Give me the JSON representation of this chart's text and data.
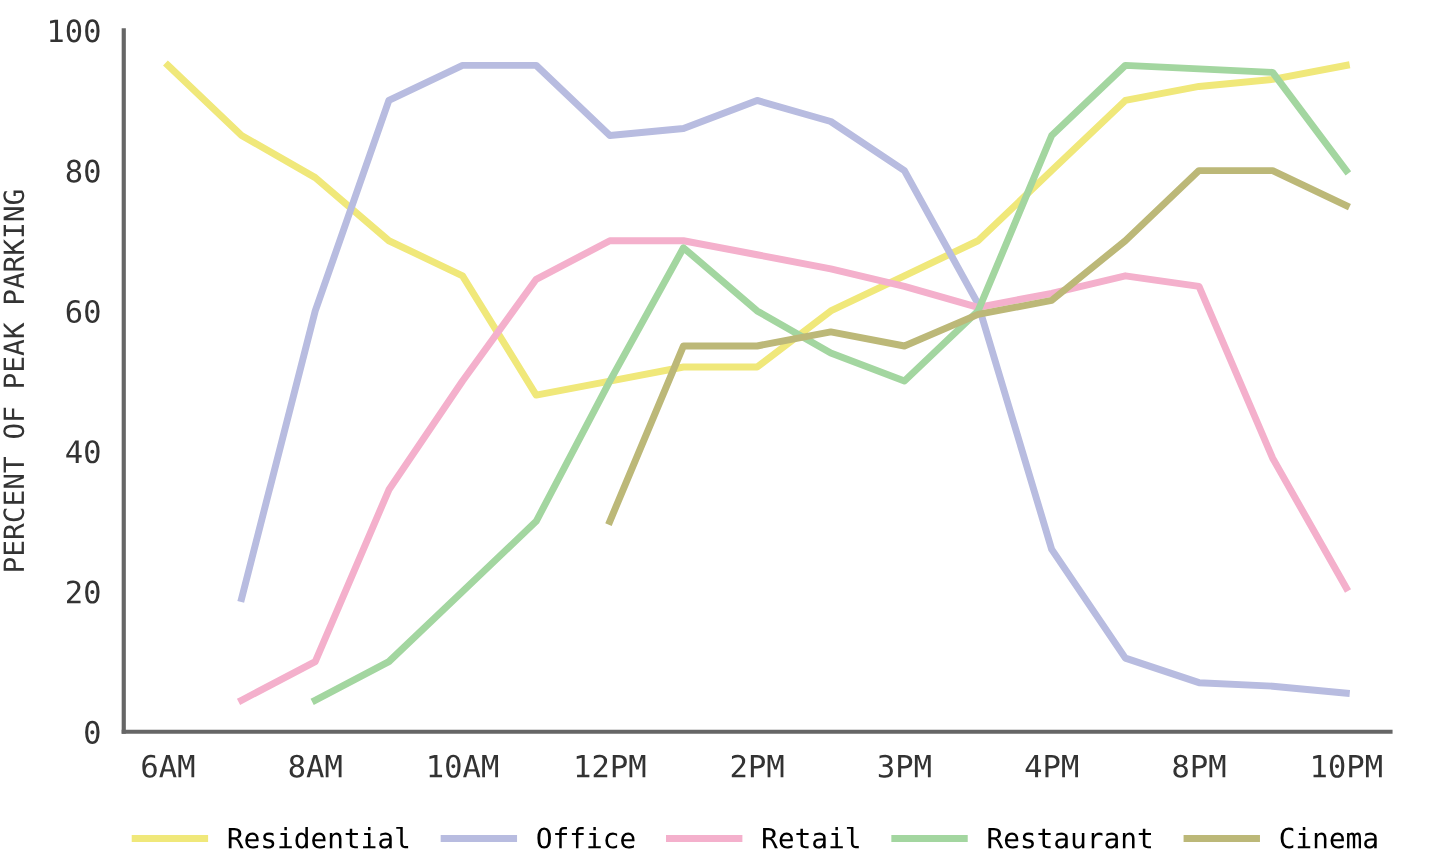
{
  "chart_data": {
    "type": "line",
    "ylabel": "PERCENT OF PEAK PARKING",
    "categories": [
      "6AM",
      null,
      "8AM",
      null,
      "10AM",
      null,
      "12PM",
      null,
      "2PM",
      null,
      "3PM",
      null,
      "4PM",
      null,
      "8PM",
      null,
      "10PM"
    ],
    "ylim": [
      0,
      100
    ],
    "yticks": [
      0,
      20,
      40,
      60,
      80,
      100
    ],
    "grid": false,
    "legend": "bottom",
    "marker": "none",
    "line_style": "solid",
    "series": [
      {
        "name": "Residential",
        "color": "#f0e87a",
        "values": [
          95,
          85,
          79,
          70,
          65,
          48,
          50,
          52,
          52,
          60,
          65,
          70,
          80,
          90,
          92,
          93,
          95
        ]
      },
      {
        "name": "Office",
        "color": "#b8bce0",
        "values": [
          null,
          19,
          60,
          90,
          95,
          95,
          85,
          86,
          90,
          87,
          80,
          61,
          26,
          10.5,
          7,
          6.5,
          5.5
        ]
      },
      {
        "name": "Retail",
        "color": "#f4b0cc",
        "values": [
          null,
          4.5,
          10,
          34.5,
          50,
          64.5,
          70,
          70,
          68,
          66,
          63.5,
          60.5,
          62.5,
          65,
          63.5,
          39,
          20.5
        ]
      },
      {
        "name": "Restaurant",
        "color": "#a3d6a0",
        "values": [
          null,
          null,
          4.5,
          10,
          20,
          30,
          50,
          69,
          60,
          54,
          50,
          60,
          85,
          95,
          94.5,
          94,
          80
        ]
      },
      {
        "name": "Cinema",
        "color": "#bcb878",
        "values": [
          null,
          null,
          null,
          null,
          null,
          null,
          30,
          55,
          55,
          57,
          55,
          59.5,
          61.5,
          70,
          80,
          80,
          75
        ]
      }
    ]
  }
}
